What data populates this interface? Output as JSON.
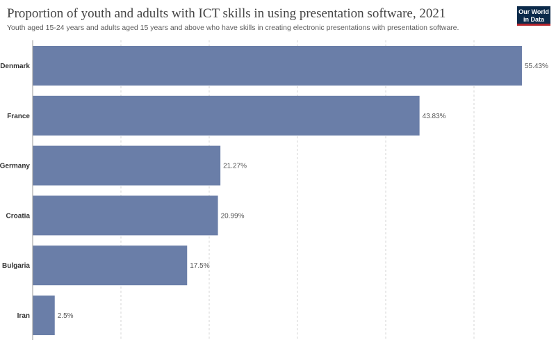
{
  "header": {
    "title": "Proportion of youth and adults with ICT skills in using presentation software, 2021",
    "subtitle": "Youth aged 15-24 years and adults aged 15 years and above who have skills in creating electronic presentations with presentation software.",
    "logo_line1": "Our World",
    "logo_line2": "in Data"
  },
  "chart_data": {
    "type": "bar",
    "orientation": "horizontal",
    "title": "Proportion of youth and adults with ICT skills in using presentation software, 2021",
    "subtitle": "Youth aged 15-24 years and adults aged 15 years and above who have skills in creating electronic presentations with presentation software.",
    "categories": [
      "Denmark",
      "France",
      "Germany",
      "Croatia",
      "Bulgaria",
      "Iran"
    ],
    "values": [
      55.43,
      43.83,
      21.27,
      20.99,
      17.5,
      2.5
    ],
    "value_labels": [
      "55.43%",
      "43.83%",
      "21.27%",
      "20.99%",
      "17.5%",
      "2.5%"
    ],
    "xlim": [
      0,
      60
    ],
    "gridlines": [
      10,
      20,
      30,
      40,
      50
    ],
    "grid": true,
    "bar_color": "#6a7ea8"
  }
}
